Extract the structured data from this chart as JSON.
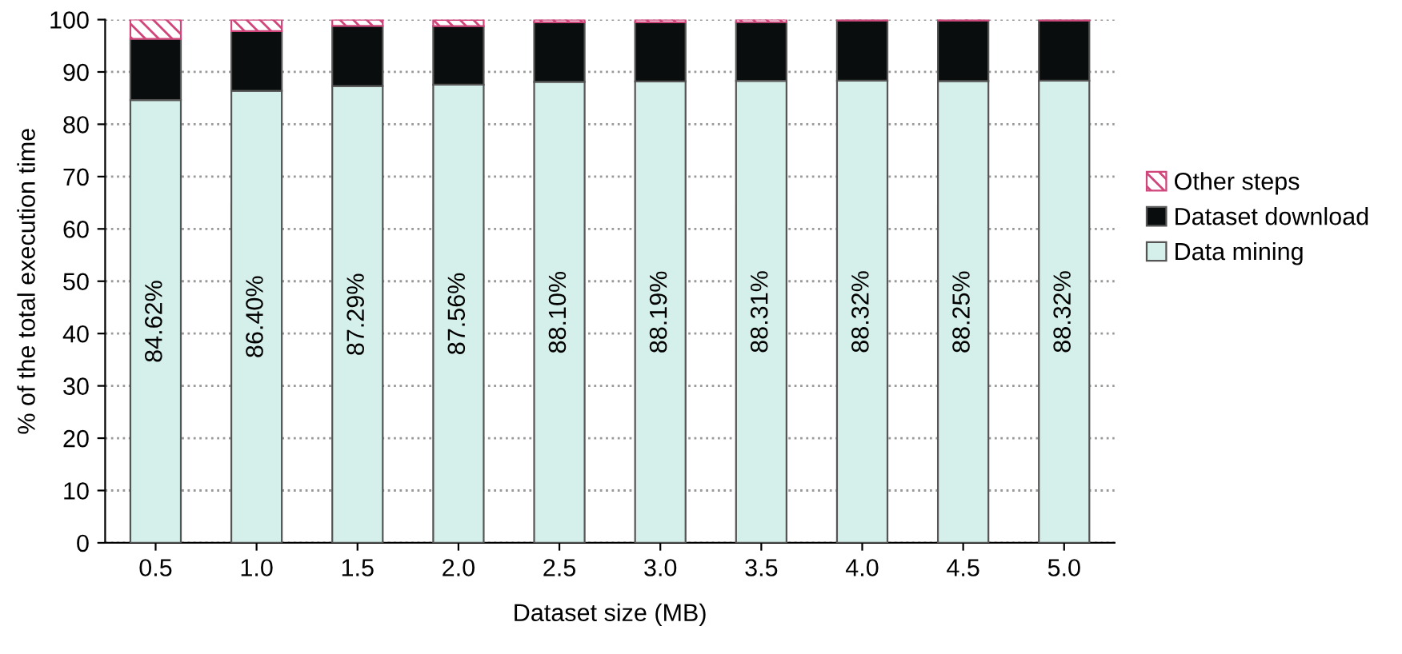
{
  "chart_data": {
    "type": "bar",
    "stacked": true,
    "xlabel": "Dataset size (MB)",
    "ylabel": "% of the total execution time",
    "categories": [
      "0.5",
      "1.0",
      "1.5",
      "2.0",
      "2.5",
      "3.0",
      "3.5",
      "4.0",
      "4.5",
      "5.0"
    ],
    "series": [
      {
        "name": "Data mining",
        "color": "#d5f0ea",
        "values": [
          84.62,
          86.4,
          87.29,
          87.56,
          88.1,
          88.19,
          88.31,
          88.32,
          88.25,
          88.32
        ],
        "value_labels": [
          "84.62%",
          "86.40%",
          "87.29%",
          "87.56%",
          "88.10%",
          "88.19%",
          "88.31%",
          "88.32%",
          "88.25%",
          "88.32%"
        ]
      },
      {
        "name": "Dataset download",
        "color": "#0a0d0d",
        "values": [
          11.7,
          11.4,
          11.5,
          11.2,
          11.4,
          11.3,
          11.2,
          11.5,
          11.6,
          11.5
        ]
      },
      {
        "name": "Other steps",
        "color": "#d0457a",
        "values": [
          3.7,
          2.2,
          1.2,
          1.2,
          0.5,
          0.5,
          0.5,
          0.2,
          0.2,
          0.2
        ]
      }
    ],
    "ylim": [
      0,
      100
    ],
    "yticks": [
      0,
      10,
      20,
      30,
      40,
      50,
      60,
      70,
      80,
      90,
      100
    ],
    "grid": "y",
    "legend": "right"
  }
}
